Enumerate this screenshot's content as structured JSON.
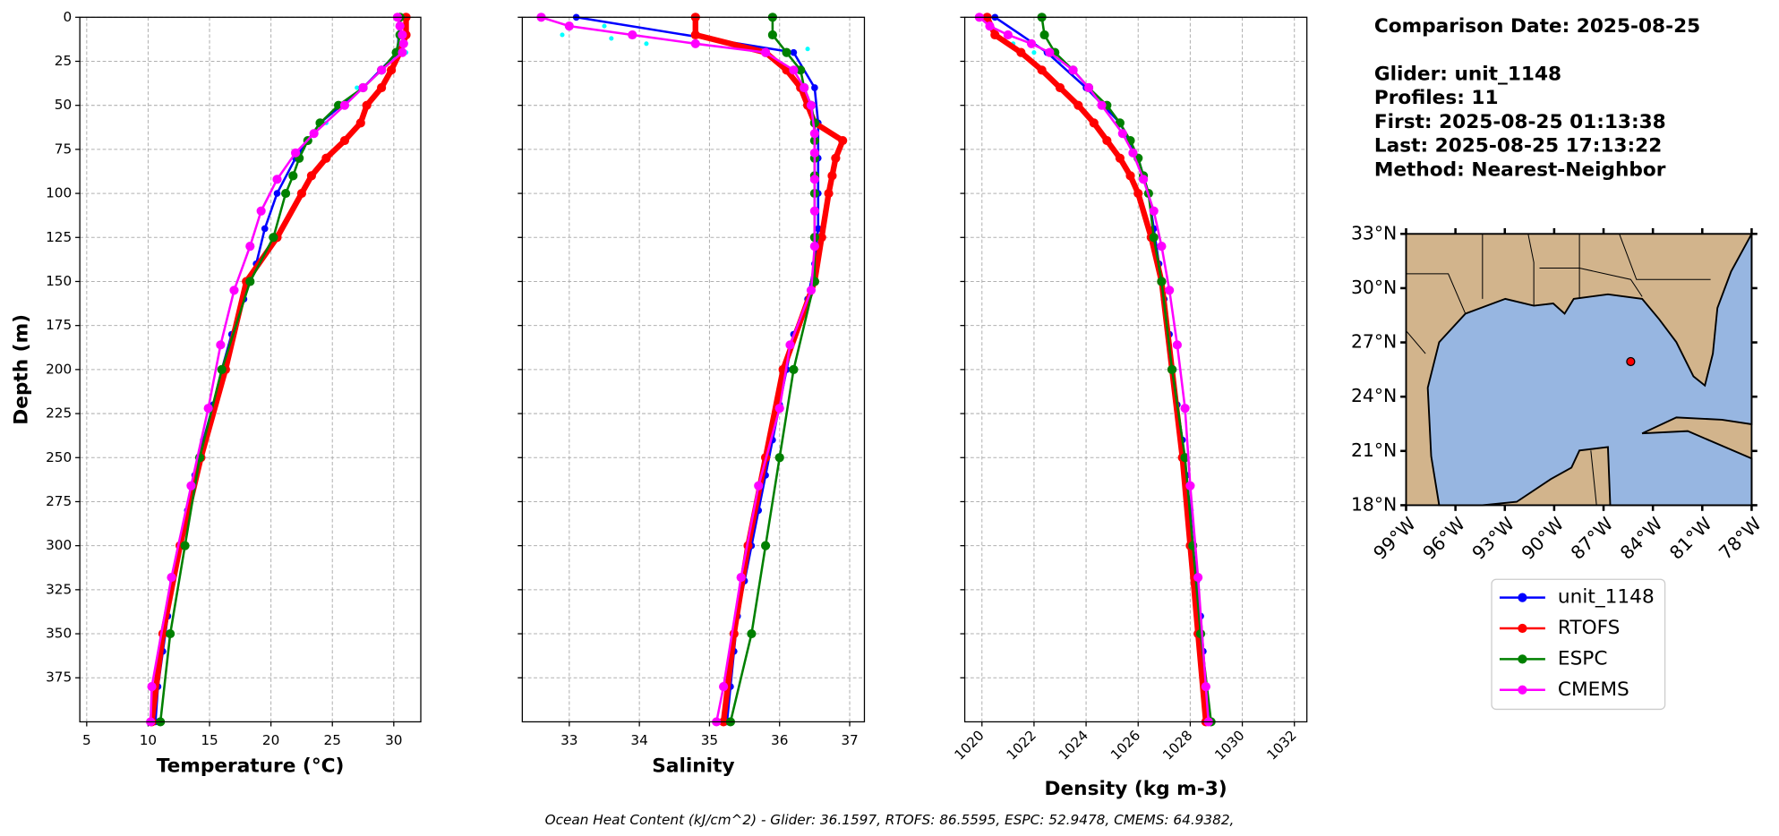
{
  "info": [
    "Comparison Date: 2025-08-25",
    "Glider: unit_1148",
    "Profiles: 11",
    "First: 2025-08-25 01:13:38",
    "Last: 2025-08-25 17:13:22",
    "Method: Nearest-Neighbor"
  ],
  "footer": "Ocean Heat Content (kJ/cm^2) - Glider: 36.1597,  RTOFS: 86.5595,  ESPC: 52.9478,  CMEMS: 64.9382,",
  "chart_data": [
    {
      "type": "line",
      "xlabel": "Temperature (°C)",
      "ylabel": "Depth (m)",
      "grid": true,
      "xlim": [
        4.44,
        32.2
      ],
      "ylim": [
        400,
        0
      ],
      "xticks": [
        5,
        10,
        15,
        20,
        25,
        30
      ],
      "yticks": [
        0,
        25,
        50,
        75,
        100,
        125,
        150,
        175,
        200,
        225,
        250,
        275,
        300,
        325,
        350,
        375
      ],
      "series": [
        {
          "color": "#00ffff",
          "y": [
            20,
            30,
            40,
            50,
            60
          ],
          "values": [
            31,
            29,
            27,
            25.5,
            24.5
          ]
        },
        {
          "name": "unit_1148",
          "color": "#0000ff",
          "y": [
            0,
            20,
            40,
            60,
            80,
            100,
            120,
            140,
            160,
            180,
            200,
            220,
            240,
            260,
            280,
            300,
            320,
            340,
            360,
            380,
            400
          ],
          "values": [
            30.5,
            30.3,
            27.5,
            24,
            22,
            20.5,
            19.5,
            18.8,
            17.8,
            16.8,
            16,
            15.3,
            14.5,
            13.8,
            13.2,
            12.6,
            12,
            11.6,
            11.2,
            10.8,
            10.6
          ]
        },
        {
          "name": "RTOFS",
          "color": "#ff0000",
          "y": [
            0,
            10,
            20,
            30,
            40,
            50,
            60,
            70,
            80,
            90,
            100,
            125,
            150,
            200,
            250,
            300,
            350,
            400
          ],
          "values": [
            31,
            31,
            30.5,
            29.8,
            29,
            27.8,
            27.3,
            26,
            24.5,
            23.3,
            22.5,
            20.5,
            18,
            16.3,
            14.3,
            12.6,
            11.2,
            10.3
          ]
        },
        {
          "name": "ESPC",
          "color": "#008000",
          "y": [
            0,
            10,
            20,
            30,
            40,
            50,
            60,
            70,
            80,
            90,
            100,
            125,
            150,
            200,
            250,
            300,
            350,
            400
          ],
          "values": [
            30.5,
            30.5,
            30.2,
            29,
            27.5,
            25.5,
            24,
            23,
            22.3,
            21.8,
            21.2,
            20.2,
            18.3,
            16,
            14.2,
            13,
            11.8,
            11
          ]
        },
        {
          "name": "CMEMS",
          "color": "#ff00ff",
          "y": [
            0,
            5,
            10,
            15,
            20,
            30,
            40,
            50,
            66,
            77,
            92,
            110,
            130,
            155,
            186,
            222,
            266,
            318,
            380,
            400
          ],
          "values": [
            30.3,
            30.5,
            30.7,
            30.8,
            30.7,
            29,
            27.5,
            26,
            23.5,
            22,
            20.5,
            19.2,
            18.3,
            17,
            15.9,
            14.9,
            13.5,
            11.9,
            10.3,
            10.2
          ]
        }
      ]
    },
    {
      "type": "line",
      "xlabel": "Salinity",
      "grid": true,
      "sharey": true,
      "xlim": [
        32.33,
        37.21
      ],
      "ylim": [
        400,
        0
      ],
      "xticks": [
        33,
        34,
        35,
        36,
        37
      ],
      "yticks": [
        0,
        25,
        50,
        75,
        100,
        125,
        150,
        175,
        200,
        225,
        250,
        275,
        300,
        325,
        350,
        375
      ],
      "series": [
        {
          "color": "#00ffff",
          "y": [
            5,
            10,
            12,
            15,
            18
          ],
          "values": [
            33.5,
            32.9,
            33.6,
            34.1,
            36.4
          ]
        },
        {
          "color": "#0000ff",
          "y": [
            0,
            20,
            40,
            60,
            80,
            100,
            120,
            140,
            160,
            180,
            200,
            220,
            240,
            260,
            280,
            300,
            320,
            340,
            360,
            380,
            400
          ],
          "values": [
            33.1,
            36.2,
            36.5,
            36.55,
            36.55,
            36.55,
            36.55,
            36.5,
            36.4,
            36.2,
            36.1,
            36,
            35.9,
            35.8,
            35.7,
            35.6,
            35.5,
            35.4,
            35.35,
            35.3,
            35.25
          ]
        },
        {
          "color": "#ff0000",
          "y": [
            0,
            10,
            20,
            30,
            40,
            50,
            60,
            70,
            80,
            90,
            100,
            125,
            150,
            200,
            250,
            300,
            350,
            400
          ],
          "values": [
            34.8,
            34.8,
            35.8,
            36.1,
            36.3,
            36.4,
            36.5,
            36.9,
            36.8,
            36.75,
            36.7,
            36.6,
            36.5,
            36.05,
            35.8,
            35.55,
            35.35,
            35.2
          ]
        },
        {
          "color": "#008000",
          "y": [
            0,
            10,
            20,
            30,
            40,
            50,
            60,
            70,
            80,
            90,
            100,
            125,
            150,
            200,
            250,
            300,
            350,
            400
          ],
          "values": [
            35.9,
            35.9,
            36.1,
            36.3,
            36.35,
            36.45,
            36.5,
            36.5,
            36.5,
            36.5,
            36.5,
            36.5,
            36.5,
            36.2,
            36,
            35.8,
            35.6,
            35.3
          ]
        },
        {
          "color": "#ff00ff",
          "y": [
            0,
            5,
            10,
            15,
            20,
            30,
            40,
            50,
            66,
            77,
            92,
            110,
            130,
            155,
            186,
            222,
            266,
            318,
            380,
            400
          ],
          "values": [
            32.6,
            33,
            33.9,
            34.8,
            35.8,
            36.2,
            36.35,
            36.45,
            36.5,
            36.5,
            36.5,
            36.5,
            36.5,
            36.45,
            36.15,
            36,
            35.7,
            35.45,
            35.2,
            35.1
          ]
        }
      ]
    },
    {
      "type": "line",
      "xlabel": "Density (kg m-3)",
      "grid": true,
      "sharey": true,
      "xtick_rotation": 45,
      "xlim": [
        1019.34,
        1032.48
      ],
      "ylim": [
        400,
        0
      ],
      "xticks": [
        1020,
        1022,
        1024,
        1026,
        1028,
        1030,
        1032
      ],
      "yticks": [
        0,
        25,
        50,
        75,
        100,
        125,
        150,
        175,
        200,
        225,
        250,
        275,
        300,
        325,
        350,
        375
      ],
      "series": [
        {
          "color": "#00ffff",
          "y": [
            10,
            15,
            20,
            25,
            30
          ],
          "values": [
            1020.5,
            1021.2,
            1022,
            1023,
            1023.5
          ]
        },
        {
          "color": "#0000ff",
          "y": [
            0,
            20,
            40,
            60,
            80,
            100,
            120,
            140,
            160,
            180,
            200,
            220,
            240,
            260,
            280,
            300,
            320,
            340,
            360,
            380,
            400
          ],
          "values": [
            1020.5,
            1022.5,
            1024,
            1025.3,
            1026,
            1026.4,
            1026.6,
            1026.8,
            1027,
            1027.2,
            1027.35,
            1027.5,
            1027.7,
            1027.85,
            1028,
            1028.1,
            1028.25,
            1028.4,
            1028.5,
            1028.6,
            1028.7
          ]
        },
        {
          "color": "#ff0000",
          "y": [
            0,
            10,
            20,
            30,
            40,
            50,
            60,
            70,
            80,
            90,
            100,
            125,
            150,
            200,
            250,
            300,
            350,
            400
          ],
          "values": [
            1020.2,
            1020.5,
            1021.5,
            1022.3,
            1023,
            1023.7,
            1024.3,
            1024.8,
            1025.3,
            1025.7,
            1026,
            1026.5,
            1026.9,
            1027.3,
            1027.7,
            1028,
            1028.3,
            1028.6
          ]
        },
        {
          "color": "#008000",
          "y": [
            0,
            10,
            20,
            30,
            40,
            50,
            60,
            70,
            80,
            90,
            100,
            125,
            150,
            200,
            250,
            300,
            350,
            400
          ],
          "values": [
            1022.3,
            1022.4,
            1022.8,
            1023.5,
            1024.1,
            1024.8,
            1025.3,
            1025.7,
            1026,
            1026.2,
            1026.4,
            1026.6,
            1026.9,
            1027.3,
            1027.8,
            1028.1,
            1028.4,
            1028.8
          ]
        },
        {
          "color": "#ff00ff",
          "y": [
            0,
            5,
            10,
            15,
            20,
            30,
            40,
            50,
            66,
            77,
            92,
            110,
            130,
            155,
            186,
            222,
            266,
            318,
            380,
            400
          ],
          "values": [
            1019.9,
            1020.3,
            1021,
            1021.9,
            1022.6,
            1023.5,
            1024.1,
            1024.6,
            1025.4,
            1025.8,
            1026.2,
            1026.6,
            1026.9,
            1027.2,
            1027.5,
            1027.8,
            1028,
            1028.3,
            1028.6,
            1028.7
          ]
        }
      ]
    },
    {
      "type": "map",
      "xlim": [
        -99,
        -78
      ],
      "ylim": [
        18,
        33
      ],
      "xtick_rotation": 45,
      "xticks": [
        {
          "value": -99,
          "label": "99°W"
        },
        {
          "value": -96,
          "label": "96°W"
        },
        {
          "value": -93,
          "label": "93°W"
        },
        {
          "value": -90,
          "label": "90°W"
        },
        {
          "value": -87,
          "label": "87°W"
        },
        {
          "value": -84,
          "label": "84°W"
        },
        {
          "value": -81,
          "label": "81°W"
        },
        {
          "value": -78,
          "label": "78°W"
        }
      ],
      "yticks": [
        {
          "value": 18,
          "label": "18°N"
        },
        {
          "value": 21,
          "label": "21°N"
        },
        {
          "value": 24,
          "label": "24°N"
        },
        {
          "value": 27,
          "label": "27°N"
        },
        {
          "value": 30,
          "label": "30°N"
        },
        {
          "value": 33,
          "label": "33°N"
        }
      ],
      "points": {
        "color": "#ff0000",
        "x": [
          -85.35
        ],
        "y": [
          25.94
        ]
      }
    }
  ]
}
